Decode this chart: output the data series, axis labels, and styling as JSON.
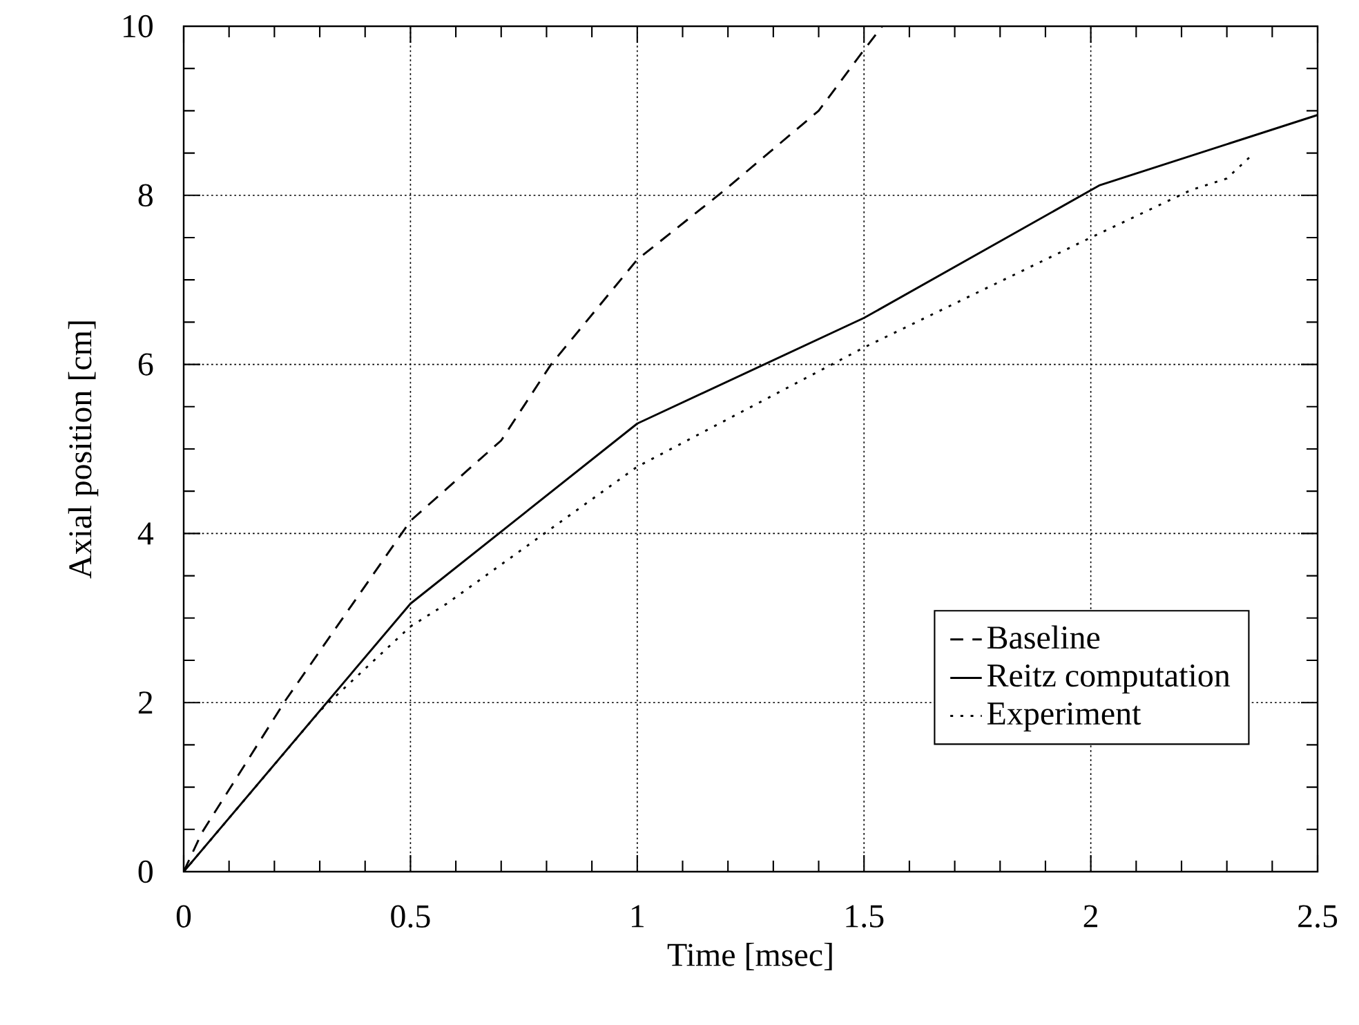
{
  "chart_data": {
    "type": "line",
    "xlabel": "Time [msec]",
    "ylabel": "Axial position [cm]",
    "xlim": [
      0,
      2.5
    ],
    "ylim": [
      0,
      10
    ],
    "xticks": [
      0,
      0.5,
      1,
      1.5,
      2,
      2.5
    ],
    "yticks": [
      0,
      2,
      4,
      6,
      8,
      10
    ],
    "grid": true,
    "legend": "right",
    "marker": "none",
    "series": [
      {
        "name": "Baseline",
        "color": "#000000",
        "line_style": "dashed",
        "x": [
          0,
          0.04,
          0.225,
          0.5,
          0.7,
          0.81,
          1,
          1.19,
          1.4,
          1.5,
          1.54
        ],
        "values": [
          0,
          0.46,
          2.03,
          4.15,
          5.1,
          6.0,
          7.24,
          8.05,
          9.0,
          9.72,
          10
        ]
      },
      {
        "name": "Reitz computation",
        "color": "#000000",
        "line_style": "solid",
        "x": [
          0,
          0.5,
          1,
          1.5,
          2.02,
          2.5
        ],
        "values": [
          0,
          3.17,
          5.3,
          6.55,
          8.12,
          8.95
        ]
      },
      {
        "name": "Experiment",
        "color": "#000000",
        "line_style": "dotted",
        "x": [
          0,
          0.3,
          0.5,
          0.58,
          1,
          1.5,
          2,
          2.22,
          2.3,
          2.35
        ],
        "values": [
          0,
          1.9,
          2.9,
          3.17,
          4.79,
          6.2,
          7.5,
          8.06,
          8.2,
          8.45
        ]
      }
    ]
  }
}
